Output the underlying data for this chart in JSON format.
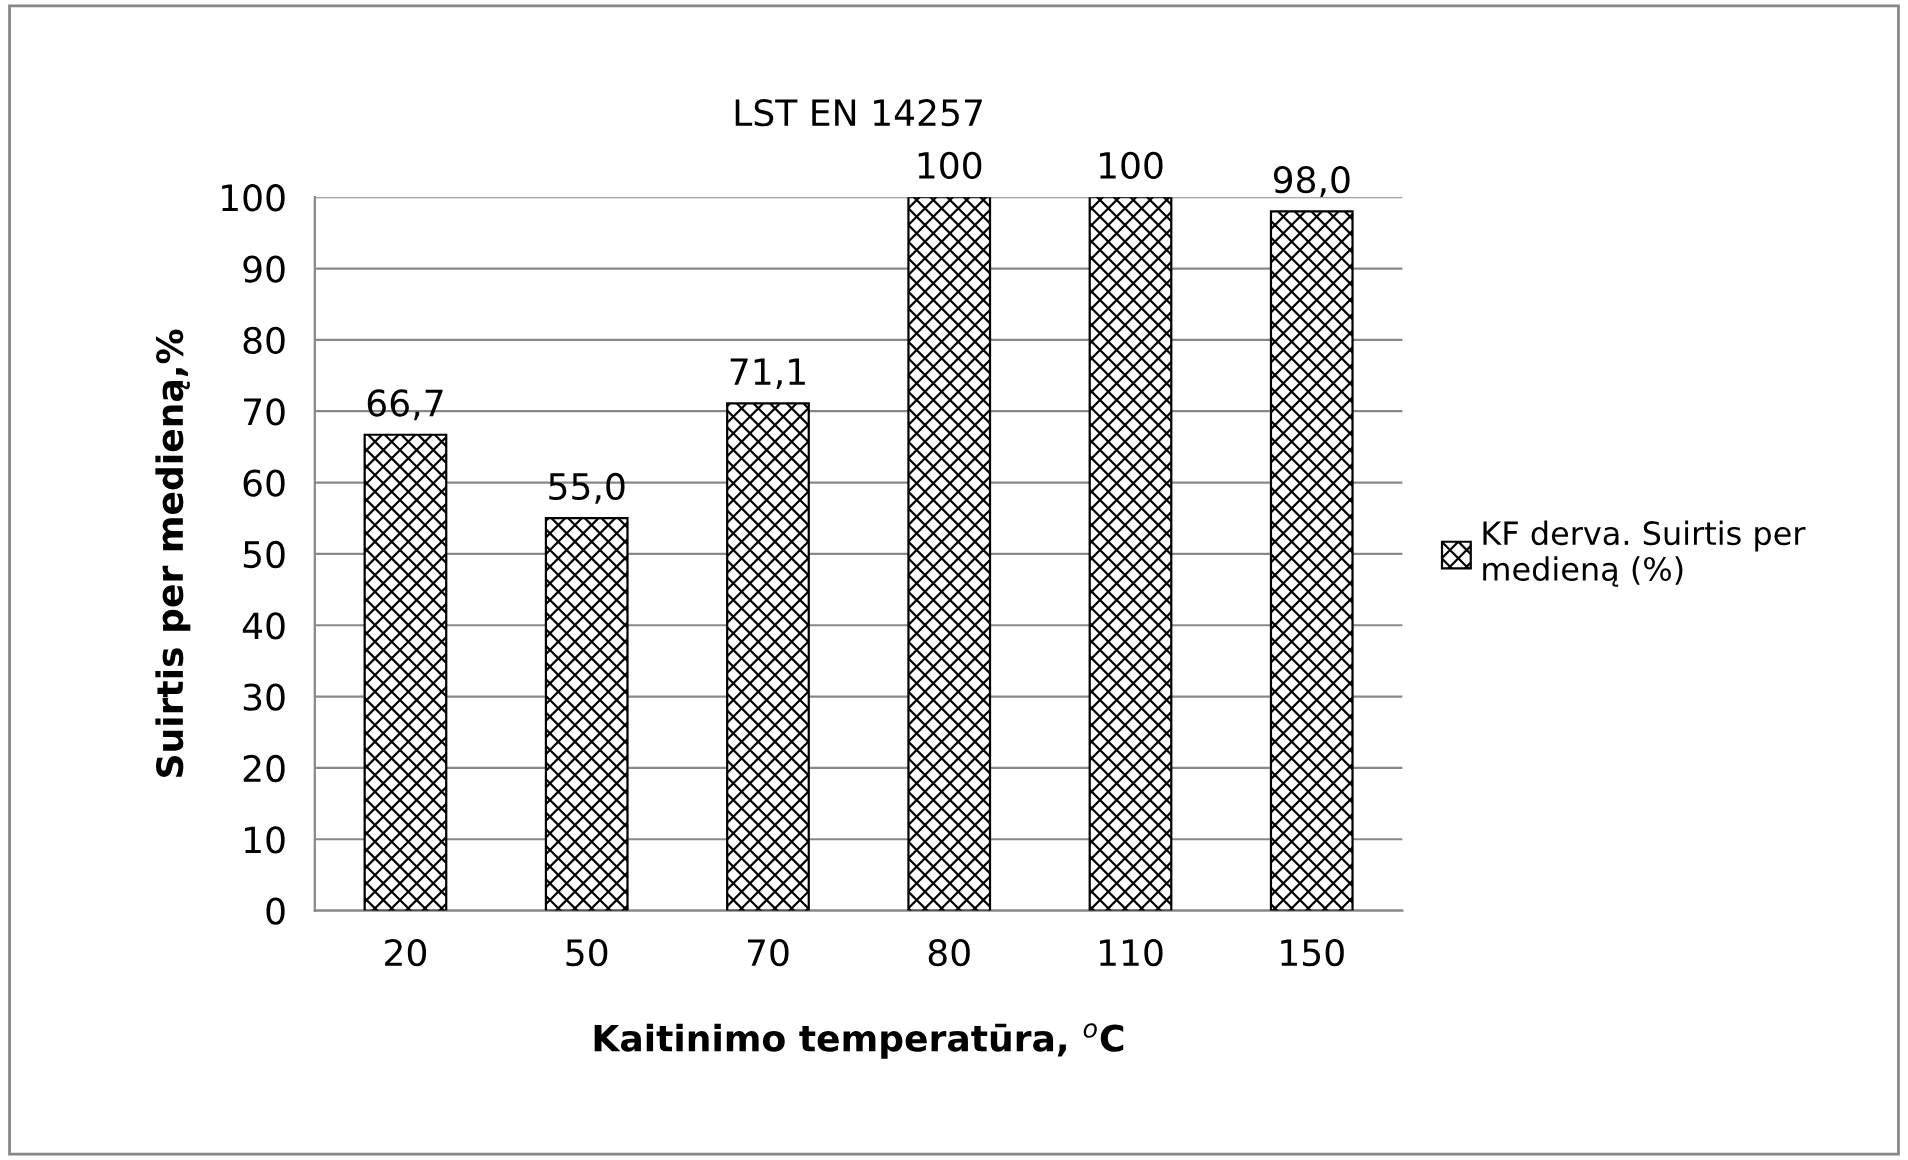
{
  "chart_data": {
    "type": "bar",
    "title": "LST EN 14257",
    "xlabel": "Kaitinimo temperatūra, $^{o}$C",
    "ylabel": "Suirtis per medieną,%",
    "categories": [
      "20",
      "50",
      "70",
      "80",
      "110",
      "150"
    ],
    "series": [
      {
        "name": "KF derva. Suirtis per medieną (%)",
        "color": "#000000",
        "values": [
          66.7,
          55.0,
          71.1,
          100,
          100,
          98.0
        ],
        "value_labels": [
          "66,7",
          "55,0",
          "71,1",
          "100",
          "100",
          "98,0"
        ]
      }
    ],
    "ylim": [
      0,
      100
    ],
    "yticks": [
      0,
      10,
      20,
      30,
      40,
      50,
      60,
      70,
      80,
      90,
      100
    ],
    "grid": "y",
    "legend": "right"
  }
}
